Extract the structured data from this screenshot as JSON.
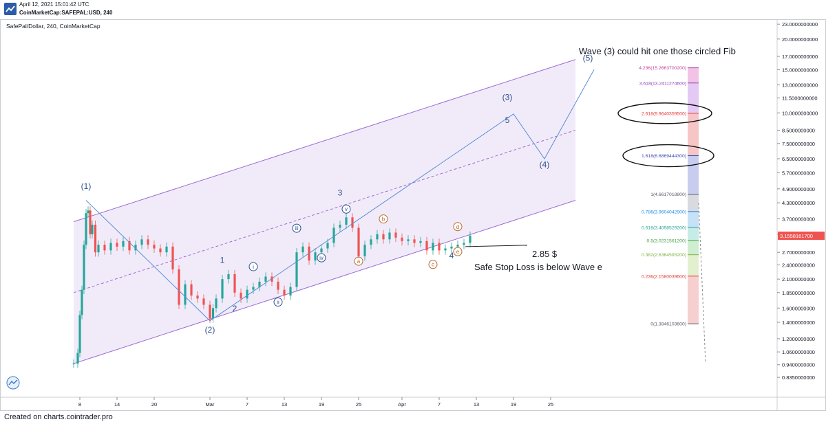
{
  "header": {
    "date": "April 12, 2021 15:01:42 UTC",
    "symbol": "CoinMarketCap:SAFEPAL:USD, 240",
    "logo_icon": "tradingview-logo-icon"
  },
  "chart_title": "SafePal/Dollar, 240, CoinMarketCap",
  "footer": "Created on charts.cointrader.pro",
  "colors": {
    "channel_line": "#9c6bd4",
    "channel_fill": "#efe9f8",
    "wave_line": "#5b8ed6",
    "candle_up": "#26a69a",
    "candle_down": "#ef5350",
    "price_badge": "#ef5350",
    "label_blue": "#2d4f8f",
    "label_orange": "#b86a2e"
  },
  "chart_data": {
    "type": "candlestick",
    "title": "SafePal/Dollar, 240, CoinMarketCap",
    "xlabel": "",
    "ylabel": "",
    "y_scale": "log",
    "ylim": [
      0.8,
      23
    ],
    "x_range": [
      "2021-02-07",
      "2021-04-29"
    ],
    "x_ticks": [
      {
        "date": "2021-02-08",
        "label": "8"
      },
      {
        "date": "2021-02-14",
        "label": "14"
      },
      {
        "date": "2021-02-20",
        "label": "20"
      },
      {
        "date": "2021-03-01",
        "label": "Mar"
      },
      {
        "date": "2021-03-07",
        "label": "7"
      },
      {
        "date": "2021-03-13",
        "label": "13"
      },
      {
        "date": "2021-03-19",
        "label": "19"
      },
      {
        "date": "2021-03-25",
        "label": "25"
      },
      {
        "date": "2021-04-01",
        "label": "Apr"
      },
      {
        "date": "2021-04-07",
        "label": "7"
      },
      {
        "date": "2021-04-13",
        "label": "13"
      },
      {
        "date": "2021-04-19",
        "label": "19"
      },
      {
        "date": "2021-04-25",
        "label": "25"
      }
    ],
    "y_ticks": [
      "23.0000000000",
      "20.0000000000",
      "17.0000000000",
      "15.0000000000",
      "13.0000000000",
      "11.5000000000",
      "10.0000000000",
      "8.5000000000",
      "7.5000000000",
      "6.5000000000",
      "5.7000000000",
      "4.9000000000",
      "4.3000000000",
      "3.7000000000",
      "3.2000000000",
      "2.7000000000",
      "2.4000000000",
      "2.1000000000",
      "1.8500000000",
      "1.6000000000",
      "1.4000000000",
      "1.2000000000",
      "1.0600000000",
      "0.9400000000",
      "0.8350000000"
    ],
    "last_price": "3.1558161700",
    "price_path": [
      [
        "2021-02-07",
        0.95
      ],
      [
        "2021-02-07T16",
        1.05
      ],
      [
        "2021-02-08",
        1.5
      ],
      [
        "2021-02-08T08",
        1.9
      ],
      [
        "2021-02-08T16",
        2.9
      ],
      [
        "2021-02-09",
        3.9
      ],
      [
        "2021-02-09T08",
        4.0
      ],
      [
        "2021-02-09T16",
        3.2
      ],
      [
        "2021-02-10",
        3.5
      ],
      [
        "2021-02-10T12",
        2.7
      ],
      [
        "2021-02-11",
        2.9
      ],
      [
        "2021-02-12",
        2.75
      ],
      [
        "2021-02-13",
        2.95
      ],
      [
        "2021-02-14",
        2.85
      ],
      [
        "2021-02-15",
        3.0
      ],
      [
        "2021-02-16",
        2.75
      ],
      [
        "2021-02-17",
        2.9
      ],
      [
        "2021-02-18",
        3.05
      ],
      [
        "2021-02-19",
        2.9
      ],
      [
        "2021-02-20",
        2.8
      ],
      [
        "2021-02-21",
        2.7
      ],
      [
        "2021-02-22",
        2.85
      ],
      [
        "2021-02-23",
        2.3
      ],
      [
        "2021-02-24",
        1.65
      ],
      [
        "2021-02-25",
        2.0
      ],
      [
        "2021-02-26",
        1.8
      ],
      [
        "2021-02-27",
        1.75
      ],
      [
        "2021-02-28",
        1.65
      ],
      [
        "2021-03-01",
        1.45
      ],
      [
        "2021-03-01T12",
        1.6
      ],
      [
        "2021-03-02",
        1.75
      ],
      [
        "2021-03-03",
        2.1
      ],
      [
        "2021-03-04",
        2.2
      ],
      [
        "2021-03-05",
        1.85
      ],
      [
        "2021-03-06",
        1.75
      ],
      [
        "2021-03-07",
        1.9
      ],
      [
        "2021-03-08",
        1.95
      ],
      [
        "2021-03-09",
        2.05
      ],
      [
        "2021-03-10",
        2.15
      ],
      [
        "2021-03-11",
        2.05
      ],
      [
        "2021-03-12",
        1.9
      ],
      [
        "2021-03-13",
        1.8
      ],
      [
        "2021-03-14",
        1.95
      ],
      [
        "2021-03-15",
        2.7
      ],
      [
        "2021-03-16",
        2.85
      ],
      [
        "2021-03-17",
        2.5
      ],
      [
        "2021-03-18",
        2.7
      ],
      [
        "2021-03-19",
        2.8
      ],
      [
        "2021-03-20",
        2.95
      ],
      [
        "2021-03-21",
        3.4
      ],
      [
        "2021-03-22",
        3.5
      ],
      [
        "2021-03-23",
        3.75
      ],
      [
        "2021-03-24",
        3.4
      ],
      [
        "2021-03-25",
        2.6
      ],
      [
        "2021-03-26",
        2.9
      ],
      [
        "2021-03-27",
        3.05
      ],
      [
        "2021-03-28",
        3.2
      ],
      [
        "2021-03-29",
        3.05
      ],
      [
        "2021-03-30",
        3.25
      ],
      [
        "2021-03-31",
        3.1
      ],
      [
        "2021-04-01",
        3.0
      ],
      [
        "2021-04-02",
        3.05
      ],
      [
        "2021-04-03",
        2.95
      ],
      [
        "2021-04-04",
        3.0
      ],
      [
        "2021-04-05",
        2.75
      ],
      [
        "2021-04-06",
        2.95
      ],
      [
        "2021-04-07",
        2.75
      ],
      [
        "2021-04-08",
        2.8
      ],
      [
        "2021-04-09",
        2.85
      ],
      [
        "2021-04-10",
        2.9
      ],
      [
        "2021-04-11",
        2.95
      ],
      [
        "2021-04-12",
        3.16
      ]
    ],
    "channel": {
      "upper": [
        [
          "2021-02-07",
          3.6
        ],
        [
          "2021-04-29",
          16.5
        ]
      ],
      "lower": [
        [
          "2021-02-07",
          0.95
        ],
        [
          "2021-04-29",
          4.4
        ]
      ],
      "median": [
        [
          "2021-02-07",
          1.85
        ],
        [
          "2021-04-29",
          8.5
        ]
      ]
    },
    "wave_path": [
      [
        "2021-02-09",
        4.4
      ],
      [
        "2021-03-01",
        1.42
      ],
      [
        "2021-04-19",
        9.9
      ],
      [
        "2021-04-24",
        6.5
      ],
      [
        "2021-05-02",
        15.0
      ]
    ],
    "wave_labels": [
      {
        "text": "(1)",
        "date": "2021-02-09",
        "price": 4.9,
        "style": "plain"
      },
      {
        "text": "(2)",
        "date": "2021-03-01",
        "price": 1.27,
        "style": "plain"
      },
      {
        "text": "(3)",
        "date": "2021-04-18",
        "price": 11.3,
        "style": "plain"
      },
      {
        "text": "5",
        "date": "2021-04-18",
        "price": 9.1,
        "style": "plain"
      },
      {
        "text": "(4)",
        "date": "2021-04-24",
        "price": 6.0,
        "style": "plain"
      },
      {
        "text": "(5)",
        "date": "2021-05-01",
        "price": 16.3,
        "style": "plain"
      },
      {
        "text": "1",
        "date": "2021-03-03",
        "price": 2.45,
        "style": "plain"
      },
      {
        "text": "2",
        "date": "2021-03-05",
        "price": 1.55,
        "style": "plain"
      },
      {
        "text": "3",
        "date": "2021-03-22",
        "price": 4.6,
        "style": "plain"
      },
      {
        "text": "4",
        "date": "2021-04-09",
        "price": 2.55,
        "style": "plain"
      },
      {
        "text": "i",
        "date": "2021-03-08",
        "price": 2.3,
        "style": "circle-blue"
      },
      {
        "text": "ii",
        "date": "2021-03-12",
        "price": 1.65,
        "style": "circle-blue"
      },
      {
        "text": "iii",
        "date": "2021-03-15",
        "price": 3.3,
        "style": "circle-blue"
      },
      {
        "text": "iv",
        "date": "2021-03-19",
        "price": 2.5,
        "style": "circle-blue"
      },
      {
        "text": "v",
        "date": "2021-03-23",
        "price": 3.95,
        "style": "circle-blue"
      },
      {
        "text": "a",
        "date": "2021-03-25",
        "price": 2.42,
        "style": "circle-orange"
      },
      {
        "text": "b",
        "date": "2021-03-29",
        "price": 3.6,
        "style": "circle-orange"
      },
      {
        "text": "c",
        "date": "2021-04-06",
        "price": 2.35,
        "style": "circle-orange"
      },
      {
        "text": "d",
        "date": "2021-04-10",
        "price": 3.35,
        "style": "circle-orange"
      },
      {
        "text": "e",
        "date": "2021-04-10",
        "price": 2.65,
        "style": "circle-orange"
      }
    ],
    "fib_levels": [
      {
        "label": "4.236(15.2663700200)",
        "price": 15.27,
        "color": "#c0409b"
      },
      {
        "label": "3.618(13.2411274600)",
        "price": 13.24,
        "color": "#8e44ad"
      },
      {
        "label": "2.618(9.9640359500)",
        "price": 9.96,
        "color": "#e53935"
      },
      {
        "label": "1.618(6.6869444300)",
        "price": 6.69,
        "color": "#3949ab"
      },
      {
        "label": "1(4.6617018800)",
        "price": 4.66,
        "color": "#555a66"
      },
      {
        "label": "0.786(3.9604042900)",
        "price": 3.96,
        "color": "#1e88e5"
      },
      {
        "label": "0.618(3.4098529200)",
        "price": 3.41,
        "color": "#26a69a"
      },
      {
        "label": "0.5(3.0231561200)",
        "price": 3.02,
        "color": "#43a047"
      },
      {
        "label": "0.382(2.6364593200)",
        "price": 2.64,
        "color": "#7cb342"
      },
      {
        "label": "0.236(2.1580039600)",
        "price": 2.16,
        "color": "#e53935"
      },
      {
        "label": "0(1.3846103600)",
        "price": 1.38,
        "color": "#555a66"
      }
    ],
    "fib_bands": [
      {
        "from": 13.24,
        "to": 15.27,
        "color": "#f1c4e6"
      },
      {
        "from": 9.96,
        "to": 13.24,
        "color": "#e3c9f3"
      },
      {
        "from": 6.69,
        "to": 9.96,
        "color": "#f6c6c6"
      },
      {
        "from": 4.66,
        "to": 6.69,
        "color": "#c8cdf0"
      },
      {
        "from": 3.96,
        "to": 4.66,
        "color": "#d9dadf"
      },
      {
        "from": 3.41,
        "to": 3.96,
        "color": "#c7e1f6"
      },
      {
        "from": 3.02,
        "to": 3.41,
        "color": "#c7ebe6"
      },
      {
        "from": 2.64,
        "to": 3.02,
        "color": "#cfedd0"
      },
      {
        "from": 2.16,
        "to": 2.64,
        "color": "#e2f0cf"
      },
      {
        "from": 1.38,
        "to": 2.16,
        "color": "#f6cfcf"
      }
    ],
    "annotations": {
      "wave3_note": "Wave (3) could hit one those circled Fib",
      "price_note": "2.85 $",
      "stop_note": "Safe Stop Loss is below Wave e"
    }
  }
}
